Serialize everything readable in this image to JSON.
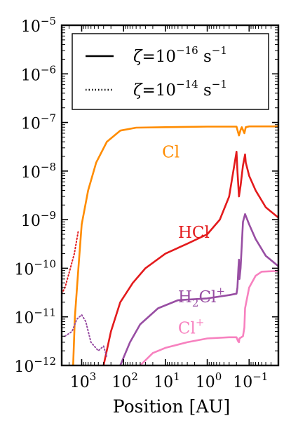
{
  "chart_data": {
    "type": "line",
    "xlabel": "Position [AU]",
    "ylabel": "",
    "x_scale": "log-reversed",
    "y_scale": "log",
    "xlim": [
      3000,
      0.02
    ],
    "ylim": [
      1e-12,
      1e-05
    ],
    "x_ticks": [
      {
        "value": 1000,
        "base": "10",
        "exp": "3"
      },
      {
        "value": 100,
        "base": "10",
        "exp": "2"
      },
      {
        "value": 10,
        "base": "10",
        "exp": "1"
      },
      {
        "value": 1,
        "base": "10",
        "exp": "0"
      },
      {
        "value": 0.1,
        "base": "10",
        "exp": "−1"
      }
    ],
    "y_ticks": [
      {
        "value": 1e-12,
        "base": "10",
        "exp": "−12"
      },
      {
        "value": 1e-11,
        "base": "10",
        "exp": "−11"
      },
      {
        "value": 1e-10,
        "base": "10",
        "exp": "−10"
      },
      {
        "value": 1e-09,
        "base": "10",
        "exp": "−9"
      },
      {
        "value": 1e-08,
        "base": "10",
        "exp": "−8"
      },
      {
        "value": 1e-07,
        "base": "10",
        "exp": "−7"
      },
      {
        "value": 1e-06,
        "base": "10",
        "exp": "−6"
      },
      {
        "value": 1e-05,
        "base": "10",
        "exp": "−5"
      }
    ],
    "legend": {
      "placement": "top",
      "entries": [
        {
          "style": "solid",
          "zeta": "ζ",
          "eq": "=10",
          "exp": "−16",
          "unit": " s",
          "unit_exp": "−1"
        },
        {
          "style": "dotted",
          "zeta": "ζ",
          "eq": "=10",
          "exp": "−14",
          "unit": " s",
          "unit_exp": "−1"
        }
      ]
    },
    "series": [
      {
        "name": "Cl",
        "color": "#ff8c00",
        "solid": [
          [
            1600,
            1e-12
          ],
          [
            1450,
            1e-11
          ],
          [
            1200,
            1e-10
          ],
          [
            1000,
            8e-10
          ],
          [
            700,
            4e-09
          ],
          [
            450,
            1.5e-08
          ],
          [
            250,
            4e-08
          ],
          [
            120,
            6.8e-08
          ],
          [
            50,
            7.8e-08
          ],
          [
            10,
            8e-08
          ],
          [
            1,
            8.2e-08
          ],
          [
            0.2,
            8.2e-08
          ],
          [
            0.19,
            7e-08
          ],
          [
            0.175,
            5.4e-08
          ],
          [
            0.16,
            7e-08
          ],
          [
            0.15,
            8e-08
          ],
          [
            0.13,
            6e-08
          ],
          [
            0.12,
            8e-08
          ],
          [
            0.1,
            8.3e-08
          ],
          [
            0.05,
            8.3e-08
          ],
          [
            0.02,
            8.3e-08
          ]
        ],
        "dotted": []
      },
      {
        "name": "HCl",
        "color": "#e31a1c",
        "solid": [
          [
            300,
            1e-12
          ],
          [
            200,
            5e-12
          ],
          [
            120,
            2e-11
          ],
          [
            60,
            5e-11
          ],
          [
            30,
            1e-10
          ],
          [
            10,
            2e-10
          ],
          [
            3,
            3.2e-10
          ],
          [
            1,
            5e-10
          ],
          [
            0.5,
            1e-09
          ],
          [
            0.3,
            3e-09
          ],
          [
            0.2,
            2.5e-08
          ],
          [
            0.19,
            1e-08
          ],
          [
            0.175,
            3e-09
          ],
          [
            0.16,
            5e-09
          ],
          [
            0.14,
            1.3e-08
          ],
          [
            0.125,
            2.2e-08
          ],
          [
            0.12,
            1.5e-08
          ],
          [
            0.1,
            8e-09
          ],
          [
            0.07,
            4e-09
          ],
          [
            0.04,
            1.8e-09
          ],
          [
            0.02,
            1.1e-09
          ]
        ],
        "dotted": [
          [
            3000,
            3e-11
          ],
          [
            2500,
            4e-11
          ],
          [
            2000,
            8e-11
          ],
          [
            1500,
            2e-10
          ],
          [
            1200,
            6e-10
          ]
        ]
      },
      {
        "name": "H₂Cl⁺",
        "color": "#984ea3",
        "solid": [
          [
            120,
            1e-12
          ],
          [
            70,
            3e-12
          ],
          [
            40,
            7e-12
          ],
          [
            15,
            1.5e-11
          ],
          [
            5,
            2.2e-11
          ],
          [
            1,
            2.4e-11
          ],
          [
            0.3,
            2.8e-11
          ],
          [
            0.2,
            3e-11
          ],
          [
            0.19,
            4e-11
          ],
          [
            0.18,
            1e-10
          ],
          [
            0.175,
            1.5e-10
          ],
          [
            0.17,
            6e-11
          ],
          [
            0.16,
            1e-10
          ],
          [
            0.14,
            9e-10
          ],
          [
            0.125,
            1.3e-09
          ],
          [
            0.1,
            8e-10
          ],
          [
            0.07,
            4e-10
          ],
          [
            0.04,
            1.8e-10
          ],
          [
            0.02,
            1.1e-10
          ]
        ],
        "dotted": [
          [
            2500,
            4e-12
          ],
          [
            1700,
            5e-12
          ],
          [
            1300,
            9e-12
          ],
          [
            1000,
            1.1e-11
          ],
          [
            800,
            8e-12
          ],
          [
            600,
            3e-12
          ],
          [
            400,
            2e-12
          ],
          [
            300,
            2.5e-12
          ],
          [
            250,
            1.5e-12
          ]
        ]
      },
      {
        "name": "Cl⁺",
        "color": "#f781bf",
        "solid": [
          [
            40,
            1e-12
          ],
          [
            20,
            1.8e-12
          ],
          [
            10,
            2.3e-12
          ],
          [
            3,
            3e-12
          ],
          [
            1,
            3.6e-12
          ],
          [
            0.3,
            3.8e-12
          ],
          [
            0.2,
            3.8e-12
          ],
          [
            0.185,
            3.2e-12
          ],
          [
            0.175,
            3e-12
          ],
          [
            0.17,
            3.6e-12
          ],
          [
            0.14,
            4e-12
          ],
          [
            0.13,
            6e-12
          ],
          [
            0.125,
            1.5e-11
          ],
          [
            0.1,
            4e-11
          ],
          [
            0.07,
            7e-11
          ],
          [
            0.05,
            8.5e-11
          ],
          [
            0.02,
            8.8e-11
          ]
        ],
        "dotted": []
      }
    ],
    "labels": [
      {
        "text": "Cl",
        "series": 0,
        "x": 12,
        "y": 1.9e-08
      },
      {
        "text": "HCl",
        "series": 1,
        "x": 5,
        "y": 4.2e-10
      },
      {
        "text": "H",
        "sub": "2",
        "rest": "Cl",
        "sup": "+",
        "series": 2,
        "x": 5,
        "y": 2e-11
      },
      {
        "text": "Cl",
        "sup": "+",
        "series": 3,
        "x": 5,
        "y": 4.5e-12
      }
    ]
  }
}
